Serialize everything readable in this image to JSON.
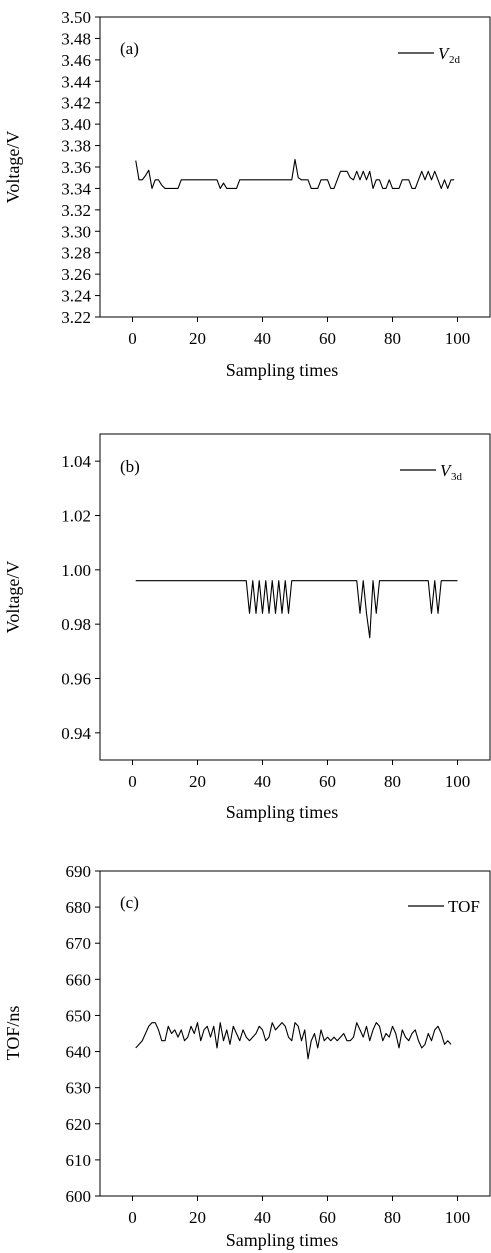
{
  "chart_data": [
    {
      "type": "line",
      "panel_label": "(a)",
      "xlabel": "Sampling times",
      "ylabel": "Voltage/V",
      "xlim": [
        -10,
        110
      ],
      "ylim": [
        3.22,
        3.5
      ],
      "x_ticks": [
        "0",
        "20",
        "40",
        "60",
        "80",
        "100"
      ],
      "y_ticks": [
        "3.22",
        "3.24",
        "3.26",
        "3.28",
        "3.30",
        "3.32",
        "3.34",
        "3.36",
        "3.38",
        "3.40",
        "3.42",
        "3.44",
        "3.46",
        "3.48",
        "3.50"
      ],
      "legend": {
        "main": "V",
        "sub": "2d",
        "italic": true,
        "position": "top-right"
      },
      "grid": false,
      "series": [
        {
          "name": "V2d",
          "x": [
            1,
            2,
            3,
            4,
            5,
            6,
            7,
            8,
            9,
            10,
            11,
            12,
            13,
            14,
            15,
            16,
            17,
            18,
            19,
            20,
            21,
            22,
            23,
            24,
            25,
            26,
            27,
            28,
            29,
            30,
            31,
            32,
            33,
            34,
            35,
            36,
            37,
            38,
            39,
            40,
            41,
            42,
            43,
            44,
            45,
            46,
            47,
            48,
            49,
            50,
            51,
            52,
            53,
            54,
            55,
            56,
            57,
            58,
            59,
            60,
            61,
            62,
            63,
            64,
            65,
            66,
            67,
            68,
            69,
            70,
            71,
            72,
            73,
            74,
            75,
            76,
            77,
            78,
            79,
            80,
            81,
            82,
            83,
            84,
            85,
            86,
            87,
            88,
            89,
            90,
            91,
            92,
            93,
            94,
            95,
            96,
            97,
            98,
            99
          ],
          "y": [
            3.366,
            3.348,
            3.348,
            3.352,
            3.357,
            3.34,
            3.348,
            3.348,
            3.343,
            3.34,
            3.34,
            3.34,
            3.34,
            3.34,
            3.348,
            3.348,
            3.348,
            3.348,
            3.348,
            3.348,
            3.348,
            3.348,
            3.348,
            3.348,
            3.348,
            3.348,
            3.34,
            3.345,
            3.34,
            3.34,
            3.34,
            3.34,
            3.348,
            3.348,
            3.348,
            3.348,
            3.348,
            3.348,
            3.348,
            3.348,
            3.348,
            3.348,
            3.348,
            3.348,
            3.348,
            3.348,
            3.348,
            3.348,
            3.348,
            3.367,
            3.35,
            3.348,
            3.348,
            3.348,
            3.34,
            3.34,
            3.34,
            3.348,
            3.348,
            3.348,
            3.34,
            3.34,
            3.348,
            3.356,
            3.356,
            3.356,
            3.35,
            3.348,
            3.356,
            3.348,
            3.356,
            3.348,
            3.356,
            3.34,
            3.348,
            3.348,
            3.34,
            3.34,
            3.348,
            3.34,
            3.34,
            3.34,
            3.348,
            3.348,
            3.348,
            3.34,
            3.34,
            3.348,
            3.356,
            3.348,
            3.356,
            3.348,
            3.356,
            3.348,
            3.34,
            3.348,
            3.34,
            3.348,
            3.348
          ]
        }
      ]
    },
    {
      "type": "line",
      "panel_label": "(b)",
      "xlabel": "Sampling times",
      "ylabel": "Voltage/V",
      "xlim": [
        -10,
        110
      ],
      "ylim": [
        0.93,
        1.05
      ],
      "x_ticks": [
        "0",
        "20",
        "40",
        "60",
        "80",
        "100"
      ],
      "y_ticks": [
        "0.94",
        "0.96",
        "0.98",
        "1.00",
        "1.02",
        "1.04"
      ],
      "legend": {
        "main": "V",
        "sub": "3d",
        "italic": true,
        "position": "top-right"
      },
      "grid": false,
      "series": [
        {
          "name": "V3d",
          "x": [
            1,
            2,
            3,
            4,
            5,
            6,
            7,
            8,
            9,
            10,
            11,
            12,
            13,
            14,
            15,
            16,
            17,
            18,
            19,
            20,
            21,
            22,
            23,
            24,
            25,
            26,
            27,
            28,
            29,
            30,
            31,
            32,
            33,
            34,
            35,
            36,
            37,
            38,
            39,
            40,
            41,
            42,
            43,
            44,
            45,
            46,
            47,
            48,
            49,
            50,
            51,
            52,
            53,
            54,
            55,
            56,
            57,
            58,
            59,
            60,
            61,
            62,
            63,
            64,
            65,
            66,
            67,
            68,
            69,
            70,
            71,
            72,
            73,
            74,
            75,
            76,
            77,
            78,
            79,
            80,
            81,
            82,
            83,
            84,
            85,
            86,
            87,
            88,
            89,
            90,
            91,
            92,
            93,
            94,
            95,
            96,
            97,
            98,
            99,
            100
          ],
          "y": [
            0.996,
            0.996,
            0.996,
            0.996,
            0.996,
            0.996,
            0.996,
            0.996,
            0.996,
            0.996,
            0.996,
            0.996,
            0.996,
            0.996,
            0.996,
            0.996,
            0.996,
            0.996,
            0.996,
            0.996,
            0.996,
            0.996,
            0.996,
            0.996,
            0.996,
            0.996,
            0.996,
            0.996,
            0.996,
            0.996,
            0.996,
            0.996,
            0.996,
            0.996,
            0.996,
            0.984,
            0.996,
            0.984,
            0.996,
            0.984,
            0.996,
            0.984,
            0.996,
            0.984,
            0.996,
            0.984,
            0.996,
            0.984,
            0.996,
            0.996,
            0.996,
            0.996,
            0.996,
            0.996,
            0.996,
            0.996,
            0.996,
            0.996,
            0.996,
            0.996,
            0.996,
            0.996,
            0.996,
            0.996,
            0.996,
            0.996,
            0.996,
            0.996,
            0.996,
            0.984,
            0.996,
            0.984,
            0.975,
            0.996,
            0.984,
            0.996,
            0.996,
            0.996,
            0.996,
            0.996,
            0.996,
            0.996,
            0.996,
            0.996,
            0.996,
            0.996,
            0.996,
            0.996,
            0.996,
            0.996,
            0.996,
            0.984,
            0.996,
            0.984,
            0.996,
            0.996,
            0.996,
            0.996,
            0.996,
            0.996
          ]
        }
      ]
    },
    {
      "type": "line",
      "panel_label": "(c)",
      "xlabel": "Sampling times",
      "ylabel": "TOF/ns",
      "xlim": [
        -10,
        110
      ],
      "ylim": [
        600,
        690
      ],
      "x_ticks": [
        "0",
        "20",
        "40",
        "60",
        "80",
        "100"
      ],
      "y_ticks": [
        "600",
        "610",
        "620",
        "630",
        "640",
        "650",
        "660",
        "670",
        "680",
        "690"
      ],
      "legend": {
        "main": "TOF",
        "sub": "",
        "italic": false,
        "position": "top-right"
      },
      "grid": false,
      "series": [
        {
          "name": "TOF",
          "x": [
            1,
            2,
            3,
            4,
            5,
            6,
            7,
            8,
            9,
            10,
            11,
            12,
            13,
            14,
            15,
            16,
            17,
            18,
            19,
            20,
            21,
            22,
            23,
            24,
            25,
            26,
            27,
            28,
            29,
            30,
            31,
            32,
            33,
            34,
            35,
            36,
            37,
            38,
            39,
            40,
            41,
            42,
            43,
            44,
            45,
            46,
            47,
            48,
            49,
            50,
            51,
            52,
            53,
            54,
            55,
            56,
            57,
            58,
            59,
            60,
            61,
            62,
            63,
            64,
            65,
            66,
            67,
            68,
            69,
            70,
            71,
            72,
            73,
            74,
            75,
            76,
            77,
            78,
            79,
            80,
            81,
            82,
            83,
            84,
            85,
            86,
            87,
            88,
            89,
            90,
            91,
            92,
            93,
            94,
            95,
            96,
            97,
            98
          ],
          "y": [
            641,
            642,
            643,
            645,
            647,
            648,
            648,
            646,
            643,
            643,
            647,
            645,
            646,
            644,
            646,
            643,
            644,
            647,
            645,
            648,
            643,
            646,
            647,
            644,
            647,
            641,
            648,
            643,
            646,
            642,
            647,
            645,
            643,
            646,
            644,
            643,
            644,
            645,
            647,
            646,
            643,
            644,
            648,
            646,
            647,
            648,
            647,
            644,
            643,
            648,
            647,
            643,
            646,
            638,
            643,
            645,
            641,
            646,
            643,
            644,
            643,
            644,
            643,
            644,
            645,
            643,
            643,
            644,
            648,
            646,
            644,
            647,
            643,
            646,
            648,
            647,
            643,
            645,
            644,
            647,
            645,
            641,
            646,
            644,
            643,
            645,
            646,
            643,
            641,
            642,
            645,
            643,
            646,
            647,
            645,
            642,
            643,
            642
          ]
        }
      ]
    }
  ]
}
